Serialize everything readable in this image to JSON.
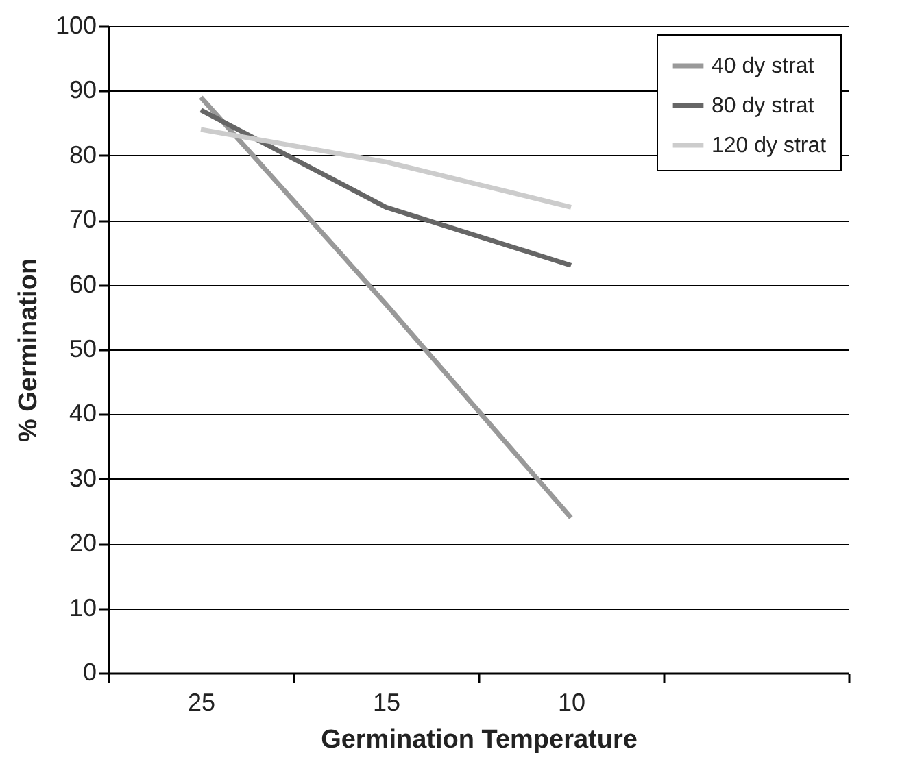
{
  "chart_data": {
    "type": "line",
    "xlabel": "Germination Temperature",
    "ylabel": "% Germination",
    "categories": [
      "25",
      "15",
      "10",
      null
    ],
    "ylim": [
      0,
      100
    ],
    "yticks": [
      0,
      10,
      20,
      30,
      40,
      50,
      60,
      70,
      80,
      90,
      100
    ],
    "grid": "y",
    "legend": "top right",
    "marker": "none",
    "line_style": "solid",
    "series": [
      {
        "name": "40 dy strat",
        "color": "#999999",
        "values": [
          89,
          57,
          24,
          null
        ]
      },
      {
        "name": "80 dy strat",
        "color": "#666666",
        "values": [
          87,
          72,
          63,
          null
        ]
      },
      {
        "name": "120 dy strat",
        "color": "#cccccc",
        "values": [
          84,
          79,
          72,
          null
        ]
      }
    ]
  }
}
